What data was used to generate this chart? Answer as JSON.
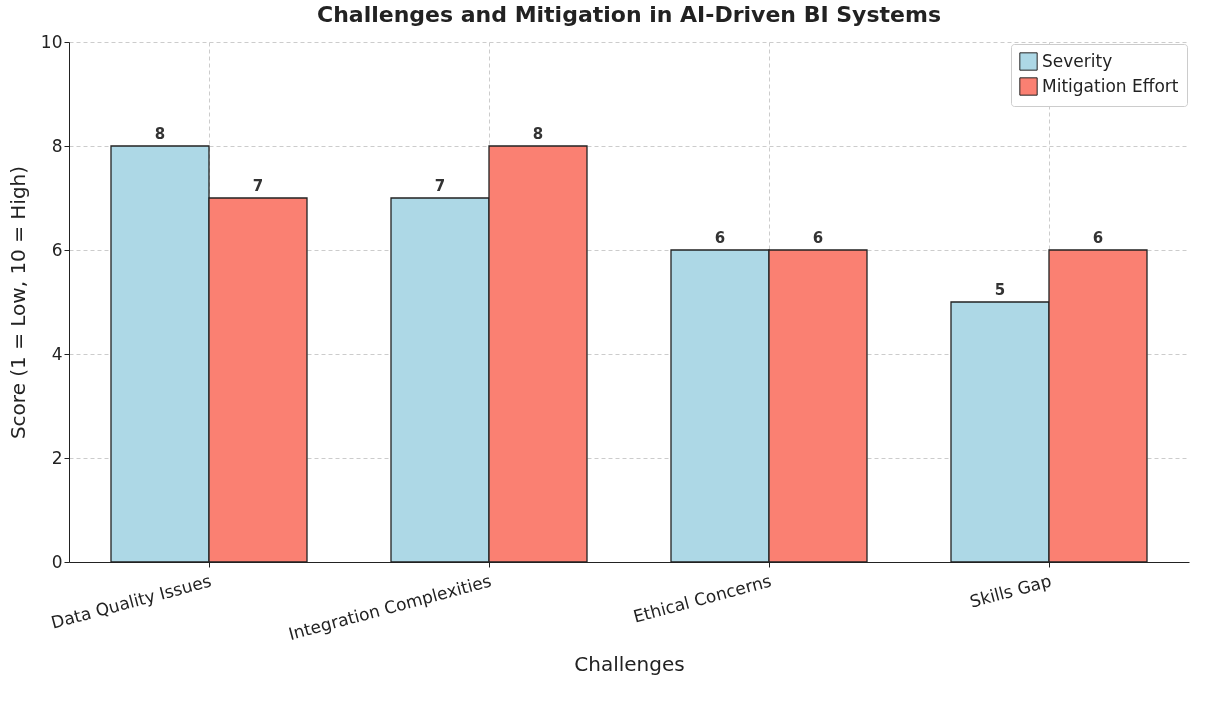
{
  "chart_data": {
    "type": "bar",
    "title": "Challenges and Mitigation in AI-Driven BI Systems",
    "xlabel": "Challenges",
    "ylabel": "Score (1 = Low, 10 = High)",
    "categories": [
      "Data Quality Issues",
      "Integration Complexities",
      "Ethical Concerns",
      "Skills Gap"
    ],
    "series": [
      {
        "name": "Severity",
        "color": "#add8e6",
        "values": [
          8,
          7,
          6,
          5
        ]
      },
      {
        "name": "Mitigation Effort",
        "color": "#fa8072",
        "values": [
          7,
          8,
          6,
          6
        ]
      }
    ],
    "ylim": [
      0,
      10
    ],
    "yticks": [
      0,
      2,
      4,
      6,
      8,
      10
    ],
    "grid": true,
    "legend": "top right",
    "data_labels": true
  }
}
